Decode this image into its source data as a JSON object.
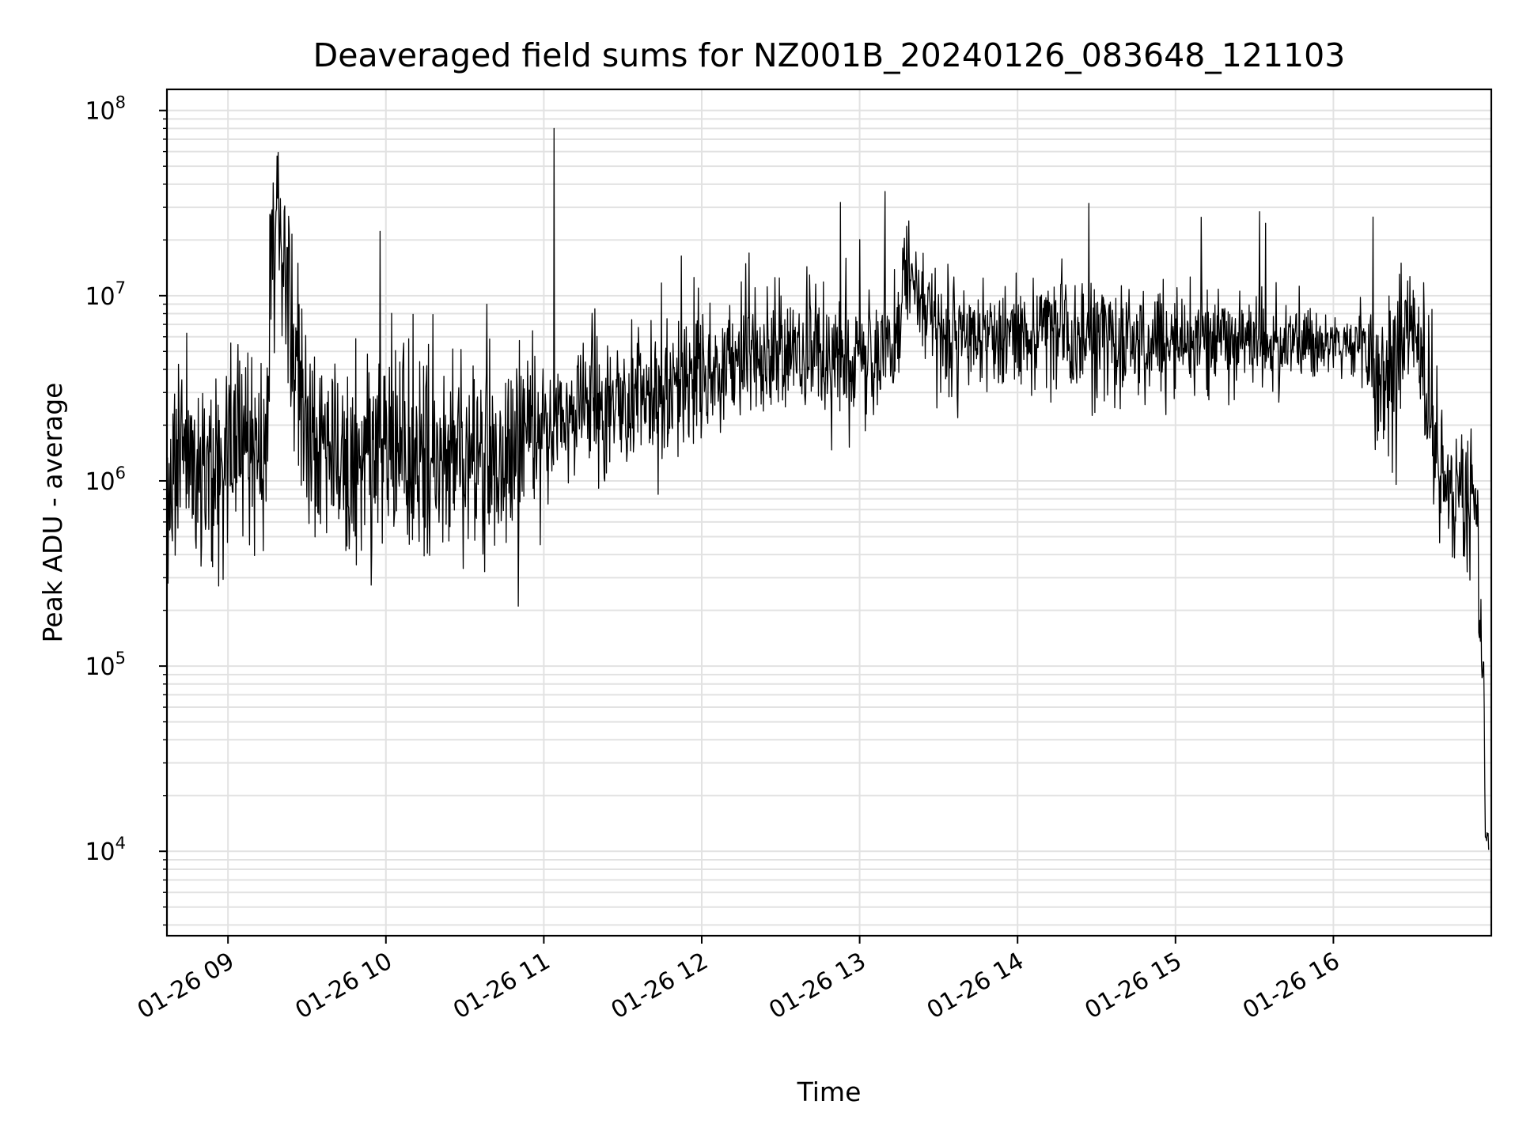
{
  "chart_data": {
    "type": "line",
    "title": "Deaveraged field sums for NZ001B_20240126_083648_121103",
    "xlabel": "Time",
    "ylabel": "Peak ADU - average",
    "yscale": "log",
    "xlim": [
      "2024-01-26T08:36:48",
      "2024-01-26T17:00:00"
    ],
    "ylim": [
      3500,
      130000000
    ],
    "grid": true,
    "line_color": "#000000",
    "x_tick_labels": [
      "01-26 09",
      "01-26 10",
      "01-26 11",
      "01-26 12",
      "01-26 13",
      "01-26 14",
      "01-26 15",
      "01-26 16"
    ],
    "x_tick_values": [
      "2024-01-26T09:00",
      "2024-01-26T10:00",
      "2024-01-26T11:00",
      "2024-01-26T12:00",
      "2024-01-26T13:00",
      "2024-01-26T14:00",
      "2024-01-26T15:00",
      "2024-01-26T16:00"
    ],
    "y_tick_values": [
      10000,
      100000,
      1000000,
      10000000,
      100000000
    ],
    "y_tick_exponents": [
      "4",
      "5",
      "6",
      "7",
      "8"
    ],
    "y_tick_base": "10",
    "series": [
      {
        "x": [
          "2024-01-26T08:37",
          "2024-01-26T08:45",
          "2024-01-26T08:55",
          "2024-01-26T09:05",
          "2024-01-26T09:15",
          "2024-01-26T09:16",
          "2024-01-26T09:19",
          "2024-01-26T09:30",
          "2024-01-26T09:45",
          "2024-01-26T10:00",
          "2024-01-26T10:15",
          "2024-01-26T10:30",
          "2024-01-26T10:45",
          "2024-01-26T10:50",
          "2024-01-26T11:00",
          "2024-01-26T11:04",
          "2024-01-26T11:15",
          "2024-01-26T11:30",
          "2024-01-26T11:45",
          "2024-01-26T12:00",
          "2024-01-26T12:15",
          "2024-01-26T12:18",
          "2024-01-26T12:30",
          "2024-01-26T12:45",
          "2024-01-26T13:00",
          "2024-01-26T13:15",
          "2024-01-26T13:17",
          "2024-01-26T13:30",
          "2024-01-26T13:45",
          "2024-01-26T14:00",
          "2024-01-26T14:10",
          "2024-01-26T14:30",
          "2024-01-26T14:45",
          "2024-01-26T15:00",
          "2024-01-26T15:15",
          "2024-01-26T15:30",
          "2024-01-26T15:45",
          "2024-01-26T16:00",
          "2024-01-26T16:10",
          "2024-01-26T16:20",
          "2024-01-26T16:25",
          "2024-01-26T16:30",
          "2024-01-26T16:38",
          "2024-01-26T16:45",
          "2024-01-26T16:50",
          "2024-01-26T16:53",
          "2024-01-26T16:55",
          "2024-01-26T16:57",
          "2024-01-26T16:58",
          "2024-01-26T16:59"
        ],
        "y": [
          800000,
          1300000,
          1000000,
          1400000,
          1800000,
          25000000,
          23000000,
          2000000,
          1300000,
          1600000,
          1400000,
          1300000,
          1300000,
          1700000,
          1900000,
          80000000,
          2500000,
          2800000,
          3000000,
          3800000,
          4200000,
          17000000,
          4800000,
          5000000,
          4000000,
          5000000,
          16000000,
          6000000,
          6200000,
          6000000,
          6500000,
          5800000,
          5300000,
          5500000,
          5700000,
          5500000,
          5600000,
          5800000,
          5500000,
          3000000,
          5500000,
          7500000,
          1600000,
          900000,
          1000000,
          900000,
          400000,
          80000,
          9000,
          15000
        ],
        "noise_level": [
          0.28,
          0.28,
          0.28,
          0.28,
          0.28,
          0.28,
          0.28,
          0.28,
          0.28,
          0.28,
          0.28,
          0.28,
          0.28,
          0.28,
          0.24,
          0.24,
          0.2,
          0.2,
          0.2,
          0.19,
          0.18,
          0.18,
          0.16,
          0.17,
          0.19,
          0.18,
          0.18,
          0.16,
          0.15,
          0.16,
          0.16,
          0.16,
          0.16,
          0.13,
          0.12,
          0.11,
          0.12,
          0.08,
          0.09,
          0.24,
          0.24,
          0.18,
          0.22,
          0.22,
          0.22,
          0.22,
          0.22,
          0.1,
          0.1,
          0.1
        ]
      }
    ]
  }
}
